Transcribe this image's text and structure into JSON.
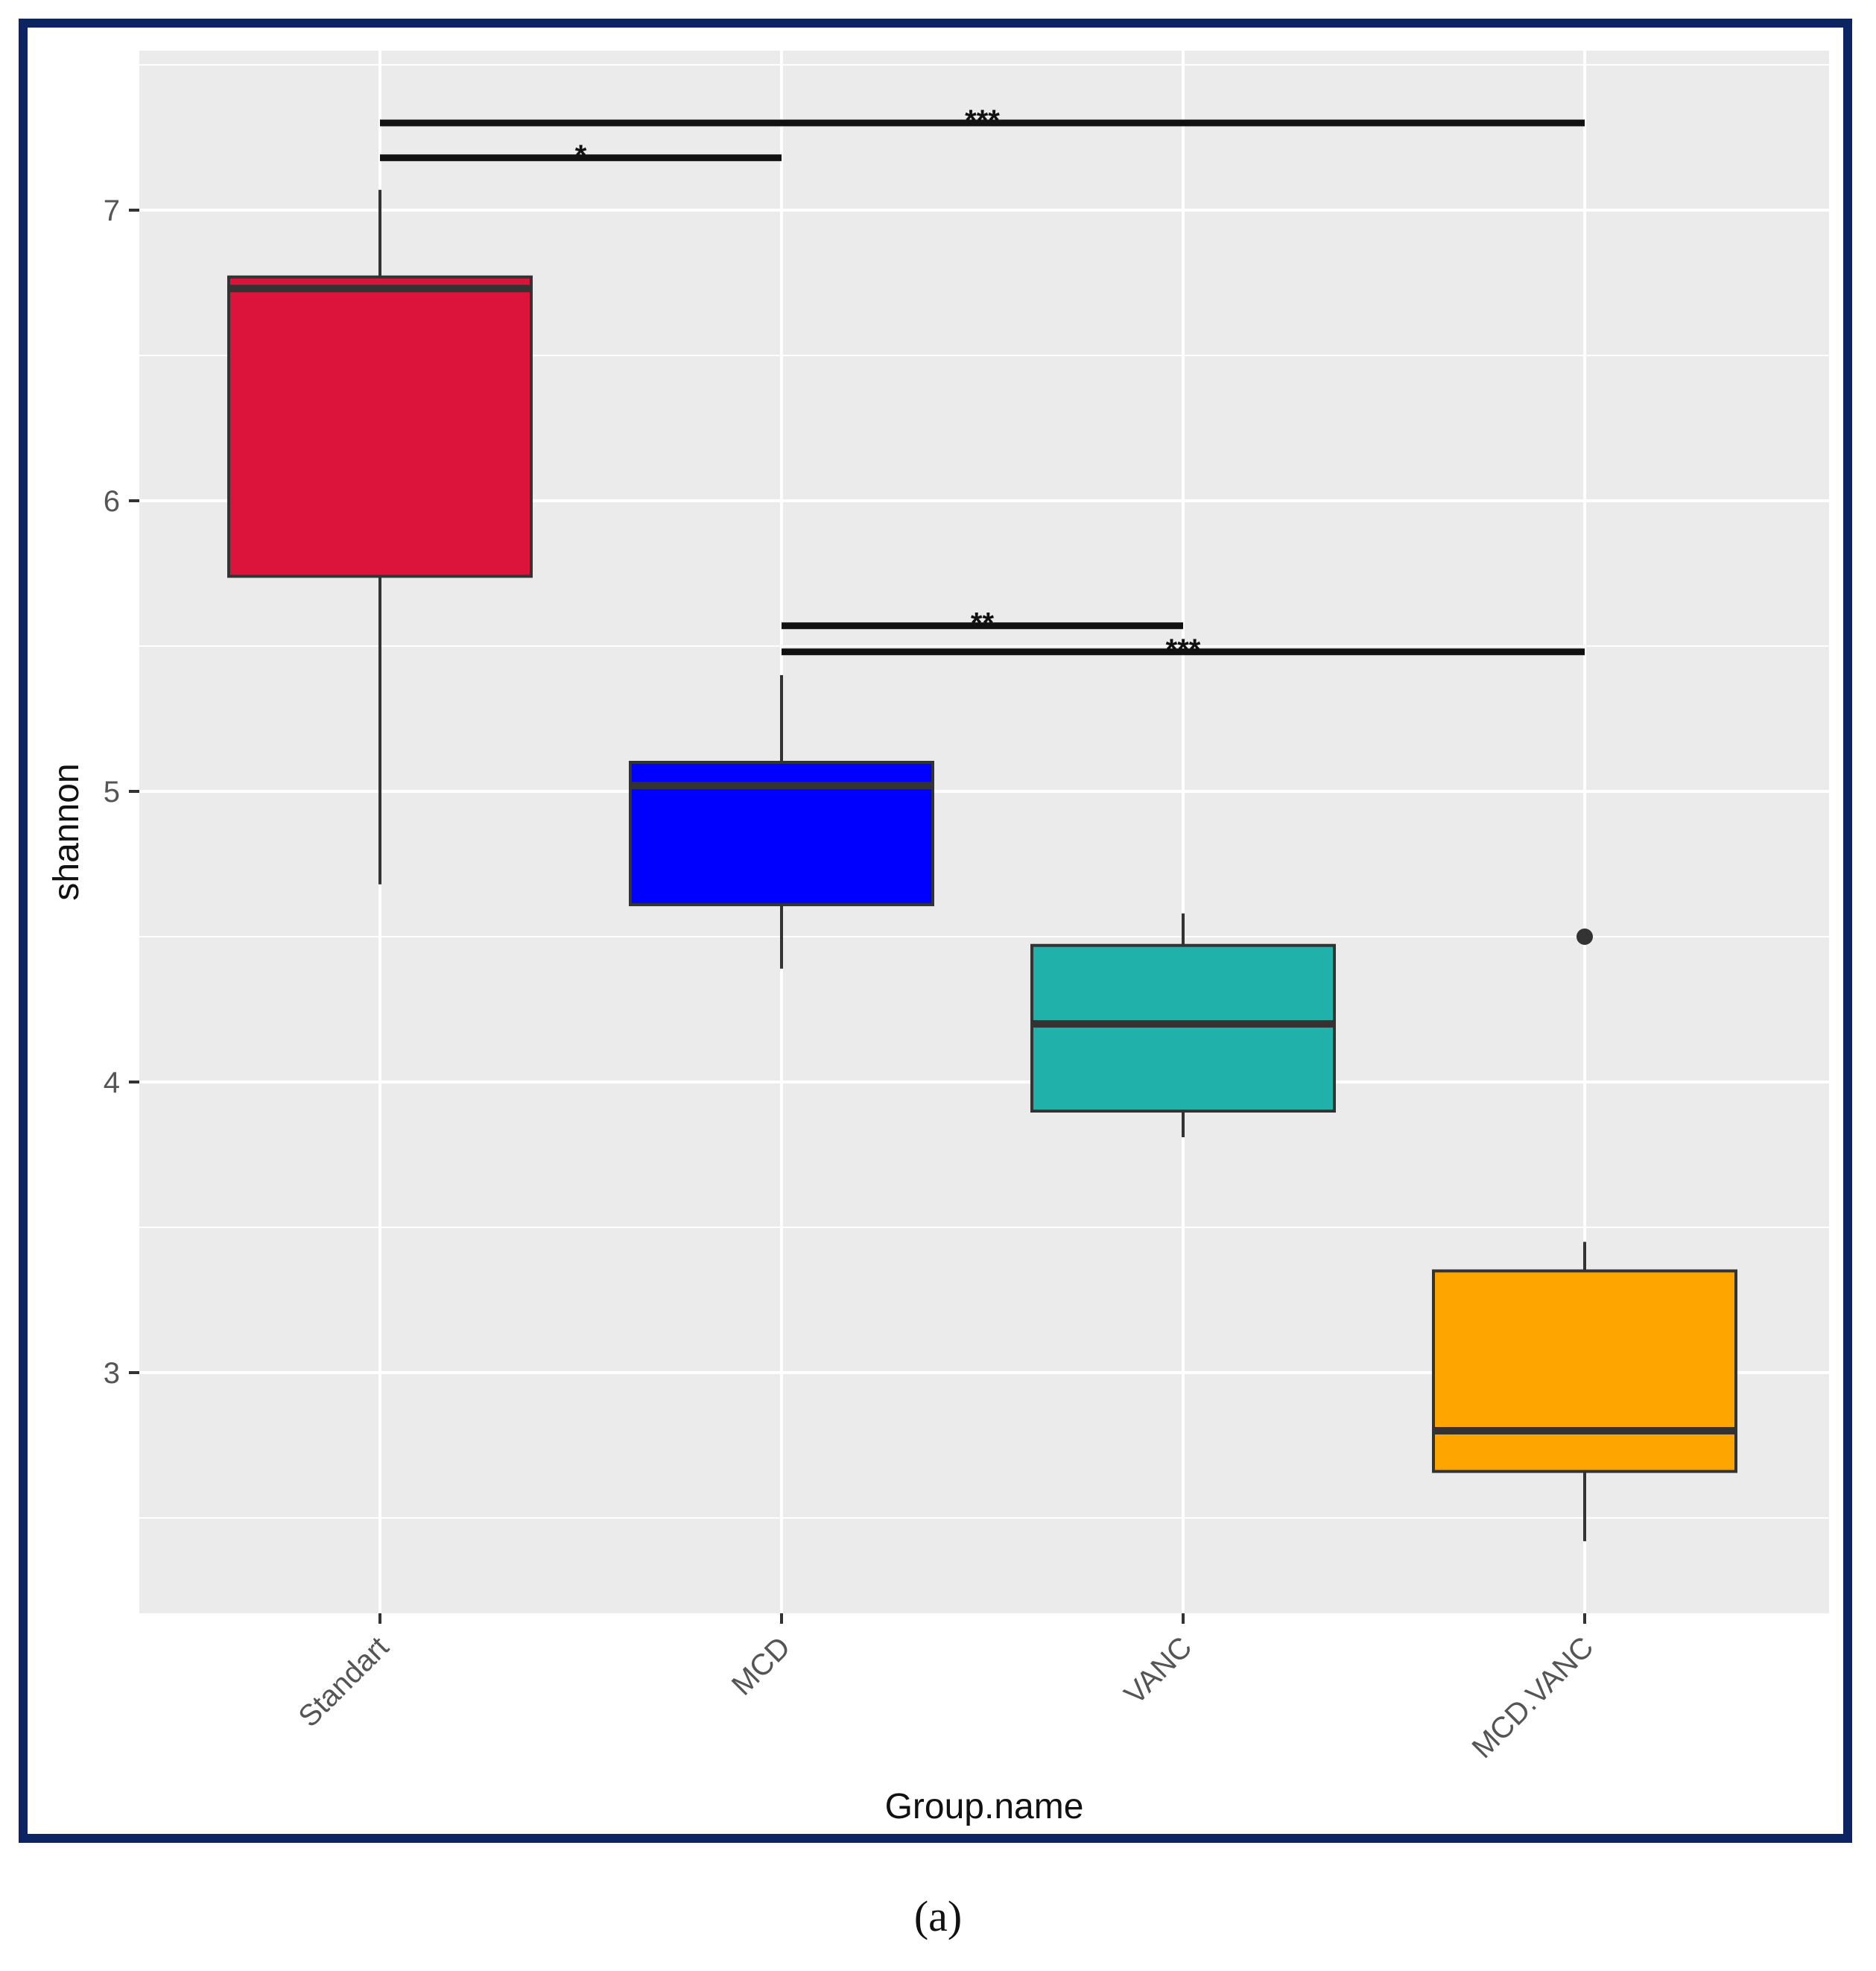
{
  "caption": "(a)",
  "colors": {
    "panel": "#ebebeb",
    "grid": "#ffffff",
    "frame": "#0c2461",
    "box_outline": "#333333",
    "median": "#333333",
    "bracket": "#111111"
  },
  "chart_data": {
    "type": "boxplot",
    "title": "",
    "xlabel": "Group.name",
    "ylabel": "shannon",
    "ylim": [
      2.2,
      7.55
    ],
    "yticks": [
      3,
      4,
      5,
      6,
      7
    ],
    "ytick_labels": [
      "3",
      "4",
      "5",
      "6",
      "7"
    ],
    "grid": true,
    "legend": "none",
    "categories": [
      "Standart",
      "MCD",
      "VANC",
      "MCD.VANC"
    ],
    "boxes": [
      {
        "name": "Standart",
        "color": "#dc143c",
        "whisker_low": 4.68,
        "q1": 5.74,
        "median": 6.73,
        "q3": 6.77,
        "whisker_high": 7.07,
        "outliers": []
      },
      {
        "name": "MCD",
        "color": "#0000ff",
        "whisker_low": 4.39,
        "q1": 4.61,
        "median": 5.02,
        "q3": 5.1,
        "whisker_high": 5.4,
        "outliers": []
      },
      {
        "name": "VANC",
        "color": "#20b2aa",
        "whisker_low": 3.81,
        "q1": 3.9,
        "median": 4.2,
        "q3": 4.47,
        "whisker_high": 4.58,
        "outliers": []
      },
      {
        "name": "MCD.VANC",
        "color": "#ffa500",
        "whisker_low": 2.42,
        "q1": 2.66,
        "median": 2.8,
        "q3": 3.35,
        "whisker_high": 3.45,
        "outliers": [
          4.5
        ]
      }
    ],
    "significance": [
      {
        "from": "Standart",
        "to": "MCD.VANC",
        "y": 7.3,
        "label": "***"
      },
      {
        "from": "Standart",
        "to": "MCD",
        "y": 7.18,
        "label": "*"
      },
      {
        "from": "MCD",
        "to": "VANC",
        "y": 5.57,
        "label": "**"
      },
      {
        "from": "MCD",
        "to": "MCD.VANC",
        "y": 5.48,
        "label": "***"
      }
    ]
  }
}
